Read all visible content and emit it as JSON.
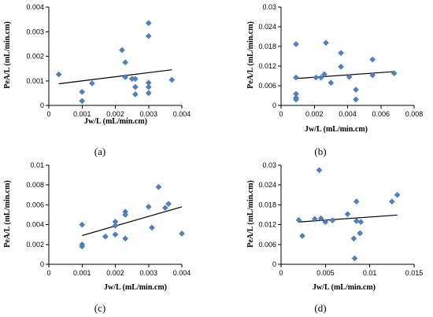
{
  "chart_data": [
    {
      "type": "scatter",
      "panel_label": "(a)",
      "xlabel": "Jw/L (mL/min.cm)",
      "ylabel": "PeA/L (mL/min.cm)",
      "xlim": [
        0,
        0.004
      ],
      "ylim": [
        0,
        0.004
      ],
      "x_ticks": [
        "0",
        "0.001",
        "0.002",
        "0.003",
        "0.004"
      ],
      "y_ticks": [
        "0",
        "0.001",
        "0.002",
        "0.003",
        "0.004"
      ],
      "points": [
        [
          0.0003,
          0.00126
        ],
        [
          0.001,
          0.00055
        ],
        [
          0.001,
          0.00018
        ],
        [
          0.0013,
          0.0009
        ],
        [
          0.0022,
          0.00225
        ],
        [
          0.0023,
          0.00175
        ],
        [
          0.0023,
          0.00115
        ],
        [
          0.0025,
          0.00108
        ],
        [
          0.0026,
          0.00108
        ],
        [
          0.0026,
          0.00075
        ],
        [
          0.0026,
          0.00045
        ],
        [
          0.003,
          0.00335
        ],
        [
          0.003,
          0.00282
        ],
        [
          0.003,
          0.00092
        ],
        [
          0.003,
          0.00075
        ],
        [
          0.003,
          0.0005
        ],
        [
          0.0037,
          0.00104
        ]
      ],
      "trendline": [
        [
          0.0003,
          0.00088
        ],
        [
          0.0037,
          0.00145
        ]
      ],
      "marker_color": "#4f81bd"
    },
    {
      "type": "scatter",
      "panel_label": "(b)",
      "xlabel": "Jw/L (mL/min.cm)",
      "ylabel": "PeA/L (mL/min.cm)",
      "xlim": [
        0,
        0.008
      ],
      "ylim": [
        0,
        0.03
      ],
      "x_ticks": [
        "0",
        "0.002",
        "0.004",
        "0.006",
        "0.008"
      ],
      "y_ticks": [
        "0",
        "0.006",
        "0.012",
        "0.018",
        "0.024",
        "0.03"
      ],
      "points": [
        [
          0.0009,
          0.0187
        ],
        [
          0.0009,
          0.0085
        ],
        [
          0.0009,
          0.0035
        ],
        [
          0.0009,
          0.0023
        ],
        [
          0.0009,
          0.0018
        ],
        [
          0.0021,
          0.0085
        ],
        [
          0.0024,
          0.0085
        ],
        [
          0.0026,
          0.0095
        ],
        [
          0.0027,
          0.0191
        ],
        [
          0.003,
          0.0069
        ],
        [
          0.0036,
          0.016
        ],
        [
          0.0036,
          0.0118
        ],
        [
          0.0041,
          0.0087
        ],
        [
          0.0045,
          0.0048
        ],
        [
          0.0045,
          0.0018
        ],
        [
          0.0055,
          0.014
        ],
        [
          0.0055,
          0.0092
        ],
        [
          0.0068,
          0.0098
        ]
      ],
      "trendline": [
        [
          0.0009,
          0.0082
        ],
        [
          0.0068,
          0.0103
        ]
      ],
      "marker_color": "#4f81bd"
    },
    {
      "type": "scatter",
      "panel_label": "(c)",
      "xlabel": "Jw/L (mL/min.cm)",
      "ylabel": "PeA/L (mL/min.cm)",
      "xlim": [
        0,
        0.004
      ],
      "ylim": [
        0,
        0.01
      ],
      "x_ticks": [
        "0",
        "0.001",
        "0.002",
        "0.003",
        "0.004"
      ],
      "y_ticks": [
        "0",
        "0.002",
        "0.004",
        "0.006",
        "0.008",
        "0.01"
      ],
      "points": [
        [
          0.001,
          0.004
        ],
        [
          0.001,
          0.002
        ],
        [
          0.001,
          0.0018
        ],
        [
          0.0017,
          0.0028
        ],
        [
          0.002,
          0.0043
        ],
        [
          0.002,
          0.0039
        ],
        [
          0.002,
          0.003
        ],
        [
          0.0023,
          0.0053
        ],
        [
          0.0023,
          0.005
        ],
        [
          0.0023,
          0.0026
        ],
        [
          0.003,
          0.0058
        ],
        [
          0.0031,
          0.0037
        ],
        [
          0.0033,
          0.0078
        ],
        [
          0.0035,
          0.0057
        ],
        [
          0.0036,
          0.0061
        ],
        [
          0.004,
          0.0031
        ]
      ],
      "trendline": [
        [
          0.001,
          0.0029
        ],
        [
          0.004,
          0.0058
        ]
      ],
      "marker_color": "#4f81bd"
    },
    {
      "type": "scatter",
      "panel_label": "(d)",
      "xlabel": "Jw/L (mL/min.cm)",
      "ylabel": "PeA/L (mL/min.cm)",
      "xlim": [
        0,
        0.015
      ],
      "ylim": [
        0,
        0.03
      ],
      "x_ticks": [
        "0",
        "0.005",
        "0.01",
        "0.015"
      ],
      "y_ticks": [
        "0",
        "0.006",
        "0.012",
        "0.018",
        "0.024",
        "0.03"
      ],
      "points": [
        [
          0.002,
          0.0134
        ],
        [
          0.0024,
          0.0086
        ],
        [
          0.0038,
          0.0137
        ],
        [
          0.0043,
          0.0285
        ],
        [
          0.0045,
          0.0139
        ],
        [
          0.005,
          0.0128
        ],
        [
          0.0058,
          0.0133
        ],
        [
          0.0075,
          0.0152
        ],
        [
          0.0082,
          0.0078
        ],
        [
          0.0085,
          0.019
        ],
        [
          0.0085,
          0.0131
        ],
        [
          0.0083,
          0.0018
        ],
        [
          0.0089,
          0.0094
        ],
        [
          0.009,
          0.0128
        ],
        [
          0.0125,
          0.019
        ],
        [
          0.0131,
          0.021
        ]
      ],
      "trendline": [
        [
          0.002,
          0.0128
        ],
        [
          0.0131,
          0.0149
        ]
      ],
      "marker_color": "#4f81bd"
    }
  ]
}
